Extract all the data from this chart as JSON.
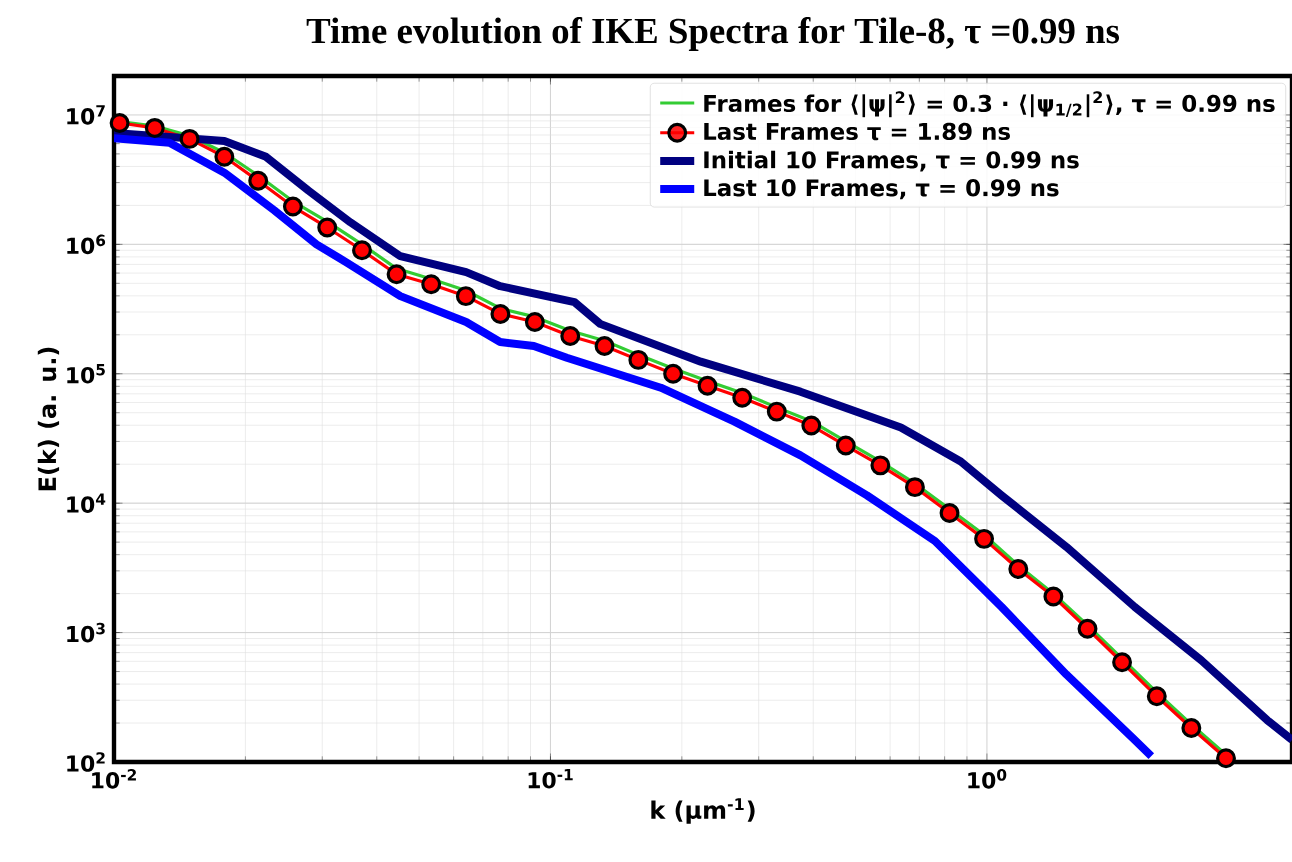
{
  "chart_data": {
    "type": "line",
    "title": "Time evolution of IKE Spectra for Tile-8, τ =0.99 ns",
    "xlabel": "k (μm$^{-1}$)",
    "ylabel": "E(k) (a. u.)",
    "log": "xy",
    "grid": true,
    "legend": "top right",
    "xlim": [
      0.01,
      5
    ],
    "ylim": [
      100,
      20000000
    ],
    "xticks": [
      {
        "value": 0.01,
        "label": "10$^{-2}$"
      },
      {
        "value": 0.1,
        "label": "10$^{-1}$"
      },
      {
        "value": 1,
        "label": "10$^{0}$"
      }
    ],
    "yticks": [
      {
        "value": 100,
        "label": "10$^{2}$"
      },
      {
        "value": 1000,
        "label": "10$^{3}$"
      },
      {
        "value": 10000,
        "label": "10$^{4}$"
      },
      {
        "value": 100000,
        "label": "10$^{5}$"
      },
      {
        "value": 1000000,
        "label": "10$^{6}$"
      },
      {
        "value": 10000000,
        "label": "10$^{7}$"
      }
    ],
    "series": [
      {
        "name": "Frames for ⟨|ψ|$^{2}$⟩ = 0.3 · ⟨|ψ$_{1/2}$|$^{2}$⟩, τ = 0.99 ns",
        "color": "#33cc33",
        "marker": "none",
        "x": [
          0.0103,
          0.0124,
          0.0149,
          0.0179,
          0.0214,
          0.0257,
          0.0308,
          0.037,
          0.0444,
          0.0533,
          0.064,
          0.0768,
          0.0921,
          0.111,
          0.133,
          0.159,
          0.191,
          0.229,
          0.275,
          0.33,
          0.396,
          0.475,
          0.57,
          0.684,
          0.821,
          0.985,
          1.18,
          1.42,
          1.7,
          2.04,
          2.45,
          2.94,
          3.53
        ],
        "values": [
          8900000,
          8200000,
          6900000,
          5100000,
          3400000,
          2150000,
          1500000,
          1000000,
          650000,
          540000,
          440000,
          320000,
          275000,
          215000,
          180000,
          140000,
          110000,
          88000,
          71000,
          55000,
          43000,
          30000,
          21000,
          14200,
          9000,
          5700,
          3300,
          2000,
          1140,
          630,
          345,
          195,
          114
        ]
      },
      {
        "name": "Last Frames τ = 1.89 ns",
        "color": "#ff0000",
        "marker": "circle",
        "x": [
          0.0103,
          0.0124,
          0.0149,
          0.0179,
          0.0214,
          0.0257,
          0.0308,
          0.037,
          0.0444,
          0.0533,
          0.064,
          0.0768,
          0.0921,
          0.111,
          0.133,
          0.159,
          0.191,
          0.229,
          0.275,
          0.33,
          0.396,
          0.475,
          0.57,
          0.684,
          0.821,
          0.985,
          1.18,
          1.42,
          1.7,
          2.04,
          2.45,
          2.94,
          3.53
        ],
        "values": [
          8670000,
          7940000,
          6530000,
          4750000,
          3100000,
          1960000,
          1350000,
          900000,
          588000,
          492000,
          398000,
          290000,
          251000,
          196000,
          164000,
          128000,
          100000,
          80900,
          65300,
          51000,
          39800,
          27900,
          19600,
          13300,
          8400,
          5300,
          3100,
          1900,
          1070,
          590,
          322,
          183,
          107
        ]
      },
      {
        "name": "Initial 10 Frames, τ = 0.99 ns",
        "color": "#000080",
        "marker": "none",
        "x": [
          0.01,
          0.0179,
          0.0223,
          0.0279,
          0.0348,
          0.0453,
          0.0542,
          0.0641,
          0.0767,
          0.1135,
          0.13,
          0.221,
          0.374,
          0.635,
          0.871,
          1.08,
          1.52,
          2.18,
          3.1,
          4.39,
          5.0
        ],
        "values": [
          7270000,
          6300000,
          4750000,
          2600000,
          1480000,
          810000,
          700000,
          610000,
          475000,
          358000,
          243000,
          124000,
          72700,
          38400,
          21000,
          11500,
          4600,
          1580,
          610,
          210,
          148
        ]
      },
      {
        "name": "Last 10 Frames, τ = 0.99 ns",
        "color": "#0000ff",
        "marker": "none",
        "x": [
          0.01,
          0.0134,
          0.0179,
          0.0233,
          0.0291,
          0.034,
          0.0453,
          0.0641,
          0.0767,
          0.0916,
          0.109,
          0.179,
          0.264,
          0.374,
          0.531,
          0.76,
          1.08,
          1.52,
          2.18,
          2.38
        ],
        "values": [
          6600000,
          6100000,
          3580000,
          1830000,
          1000000,
          730000,
          398000,
          251000,
          176000,
          164000,
          133000,
          78000,
          42700,
          23400,
          11500,
          5100,
          1580,
          475,
          148,
          111
        ]
      }
    ]
  }
}
